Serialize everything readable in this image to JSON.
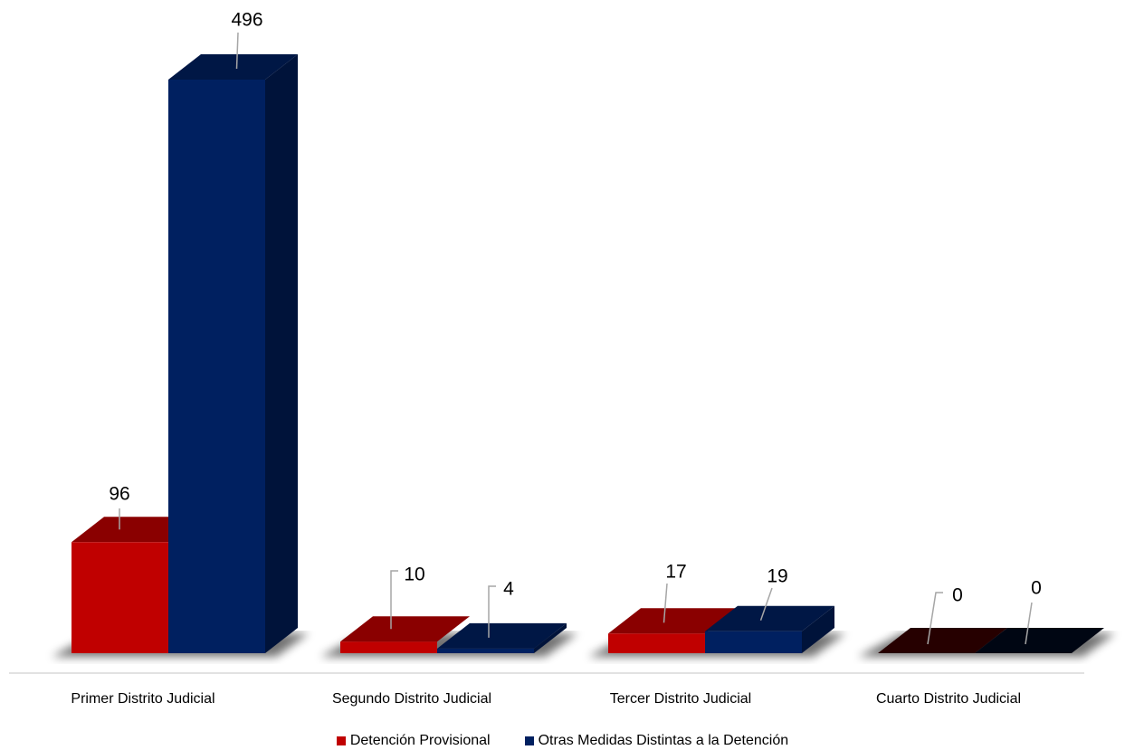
{
  "chart_data": {
    "type": "bar",
    "style": "3d-clustered",
    "categories": [
      "Primer Distrito Judicial",
      "Segundo Distrito Judicial",
      "Tercer Distrito Judicial",
      "Cuarto Distrito Judicial"
    ],
    "series": [
      {
        "name": "Detención Provisional",
        "values": [
          96,
          10,
          17,
          0
        ],
        "color": "#c00000"
      },
      {
        "name": "Otras Medidas Distintas a la Detención",
        "values": [
          496,
          4,
          19,
          0
        ],
        "color": "#002060"
      }
    ],
    "data_labels": [
      [
        "96",
        "10",
        "17",
        "0"
      ],
      [
        "496",
        "4",
        "19",
        "0"
      ]
    ],
    "ylim": [
      0,
      500
    ],
    "grid": false,
    "legend_position": "bottom"
  }
}
